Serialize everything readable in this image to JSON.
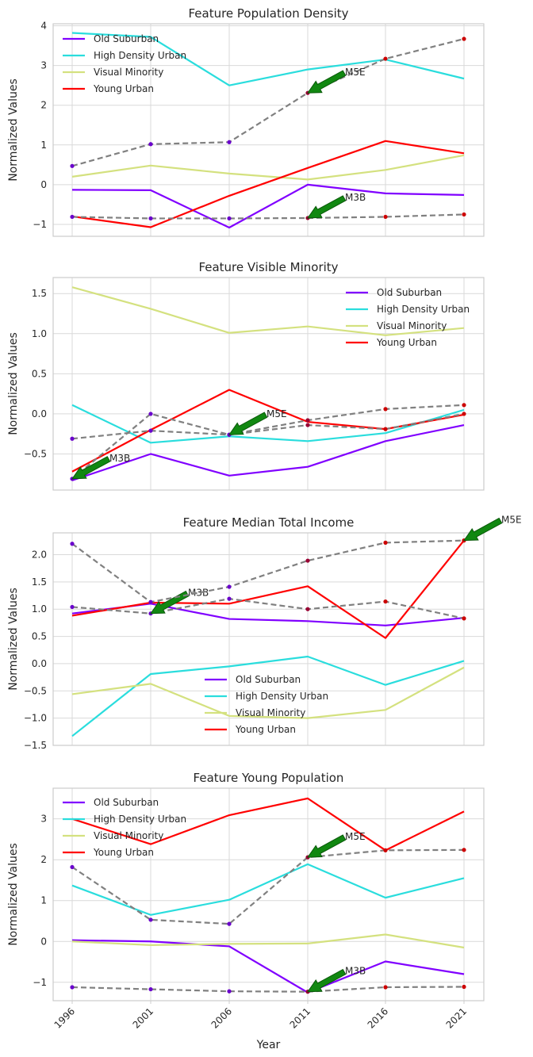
{
  "x_label": "Year",
  "colors": {
    "Old Suburban": "#8000ff",
    "High Density Urban": "#2adddd",
    "Visual Minority": "#d4e17f",
    "Young Urban": "#ff0000",
    "trajectory": "#808080",
    "arrow": "#118811"
  },
  "chart_data": [
    {
      "type": "line",
      "title": "Feature Population Density",
      "xlabel": "",
      "ylabel": "Normalized Values",
      "categories": [
        "1996",
        "2001",
        "2006",
        "2011",
        "2016",
        "2021"
      ],
      "ylim": [
        -1.3,
        4.05
      ],
      "yticks": [
        -1,
        0,
        1,
        2,
        3,
        4
      ],
      "grid": true,
      "legend_placement": "top-left",
      "series": [
        {
          "name": "Old Suburban",
          "values": [
            -0.13,
            -0.14,
            -1.08,
            0.0,
            -0.22,
            -0.26
          ]
        },
        {
          "name": "High Density Urban",
          "values": [
            3.82,
            3.72,
            2.5,
            2.9,
            3.15,
            2.67
          ]
        },
        {
          "name": "Visual Minority",
          "values": [
            0.2,
            0.48,
            0.28,
            0.13,
            0.37,
            0.74
          ]
        },
        {
          "name": "Young Urban",
          "values": [
            -0.8,
            -1.07,
            -0.28,
            0.42,
            1.1,
            0.79
          ]
        }
      ],
      "trajectories": [
        {
          "label": "M5E",
          "values": [
            0.47,
            1.02,
            1.07,
            2.31,
            3.17,
            3.67
          ],
          "arrow_index": 3
        },
        {
          "label": "M3B",
          "values": [
            -0.81,
            -0.85,
            -0.85,
            -0.84,
            -0.81,
            -0.75
          ],
          "arrow_index": 3
        }
      ]
    },
    {
      "type": "line",
      "title": "Feature Visible Minority",
      "xlabel": "",
      "ylabel": "Normalized Values",
      "categories": [
        "1996",
        "2001",
        "2006",
        "2011",
        "2016",
        "2021"
      ],
      "ylim": [
        -0.95,
        1.7
      ],
      "yticks": [
        -0.5,
        0.0,
        0.5,
        1.0,
        1.5
      ],
      "grid": true,
      "legend_placement": "top-right",
      "series": [
        {
          "name": "Old Suburban",
          "values": [
            -0.83,
            -0.5,
            -0.77,
            -0.66,
            -0.34,
            -0.14
          ]
        },
        {
          "name": "High Density Urban",
          "values": [
            0.11,
            -0.36,
            -0.28,
            -0.34,
            -0.24,
            0.05
          ]
        },
        {
          "name": "Visual Minority",
          "values": [
            1.58,
            1.31,
            1.01,
            1.09,
            0.98,
            1.07
          ]
        },
        {
          "name": "Young Urban",
          "values": [
            -0.72,
            -0.2,
            0.3,
            -0.1,
            -0.19,
            -0.01
          ]
        }
      ],
      "trajectories": [
        {
          "label": "M3B",
          "values": [
            -0.81,
            0.0,
            -0.26,
            -0.08,
            0.06,
            0.11
          ],
          "arrow_index": 0
        },
        {
          "label": "M5E",
          "values": [
            -0.31,
            -0.21,
            -0.26,
            -0.14,
            -0.19,
            -0.0
          ],
          "arrow_index": 2
        }
      ]
    },
    {
      "type": "line",
      "title": "Feature Median Total Income",
      "xlabel": "",
      "ylabel": "Normalized Values",
      "categories": [
        "1996",
        "2001",
        "2006",
        "2011",
        "2016",
        "2021"
      ],
      "ylim": [
        -1.5,
        2.4
      ],
      "yticks": [
        -1.5,
        -1.0,
        -0.5,
        0.0,
        0.5,
        1.0,
        1.5,
        2.0
      ],
      "grid": true,
      "legend_placement": "lower-center",
      "series": [
        {
          "name": "Old Suburban",
          "values": [
            0.92,
            1.1,
            0.82,
            0.78,
            0.7,
            0.84
          ]
        },
        {
          "name": "High Density Urban",
          "values": [
            -1.33,
            -0.19,
            -0.05,
            0.13,
            -0.39,
            0.05
          ]
        },
        {
          "name": "Visual Minority",
          "values": [
            -0.56,
            -0.37,
            -0.96,
            -1.0,
            -0.85,
            -0.07
          ]
        },
        {
          "name": "Young Urban",
          "values": [
            0.88,
            1.12,
            1.1,
            1.42,
            0.47,
            2.26
          ]
        }
      ],
      "trajectories": [
        {
          "label": "M3B",
          "values": [
            1.04,
            0.92,
            1.19,
            1.0,
            1.14,
            0.83
          ],
          "arrow_index": 1
        },
        {
          "label": "M5E",
          "values": [
            2.2,
            1.13,
            1.41,
            1.89,
            2.22,
            2.26
          ],
          "arrow_index": 5
        }
      ]
    },
    {
      "type": "line",
      "title": "Feature Young Population",
      "xlabel": "Year",
      "ylabel": "Normalized Values",
      "categories": [
        "1996",
        "2001",
        "2006",
        "2011",
        "2016",
        "2021"
      ],
      "ylim": [
        -1.45,
        3.75
      ],
      "yticks": [
        -1,
        0,
        1,
        2,
        3
      ],
      "grid": true,
      "legend_placement": "top-left",
      "series": [
        {
          "name": "Old Suburban",
          "values": [
            0.03,
            0.0,
            -0.12,
            -1.25,
            -0.49,
            -0.8
          ]
        },
        {
          "name": "High Density Urban",
          "values": [
            1.37,
            0.65,
            1.02,
            1.89,
            1.07,
            1.55
          ]
        },
        {
          "name": "Visual Minority",
          "values": [
            0.0,
            -0.09,
            -0.06,
            -0.05,
            0.17,
            -0.15
          ]
        },
        {
          "name": "Young Urban",
          "values": [
            3.0,
            2.38,
            3.09,
            3.5,
            2.23,
            3.18
          ]
        }
      ],
      "trajectories": [
        {
          "label": "M5E",
          "values": [
            1.82,
            0.53,
            0.43,
            2.06,
            2.23,
            2.24
          ],
          "arrow_index": 3
        },
        {
          "label": "M3B",
          "values": [
            -1.12,
            -1.17,
            -1.22,
            -1.23,
            -1.12,
            -1.11
          ],
          "arrow_index": 3
        }
      ]
    }
  ]
}
